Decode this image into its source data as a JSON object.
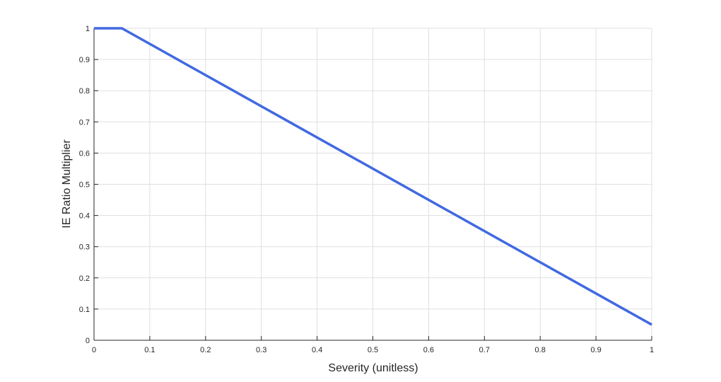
{
  "chart_data": {
    "type": "line",
    "xlabel": "Severity (unitless)",
    "ylabel": "IE Ratio Multiplier",
    "xlim": [
      0,
      1
    ],
    "ylim": [
      0,
      1
    ],
    "grid": true,
    "x_ticks": [
      0,
      0.1,
      0.2,
      0.3,
      0.4,
      0.5,
      0.6,
      0.7,
      0.8,
      0.9,
      1
    ],
    "x_tick_labels": [
      "0",
      "0.1",
      "0.2",
      "0.3",
      "0.4",
      "0.5",
      "0.6",
      "0.7",
      "0.8",
      "0.9",
      "1"
    ],
    "y_ticks": [
      0,
      0.1,
      0.2,
      0.3,
      0.4,
      0.5,
      0.6,
      0.7,
      0.8,
      0.9,
      1
    ],
    "y_tick_labels": [
      "0",
      "0.1",
      "0.2",
      "0.3",
      "0.4",
      "0.5",
      "0.6",
      "0.7",
      "0.8",
      "0.9",
      "1"
    ],
    "series": [
      {
        "color": "#4169E1",
        "x": [
          0,
          0.05,
          1
        ],
        "y": [
          1,
          1,
          0.05
        ]
      }
    ]
  }
}
